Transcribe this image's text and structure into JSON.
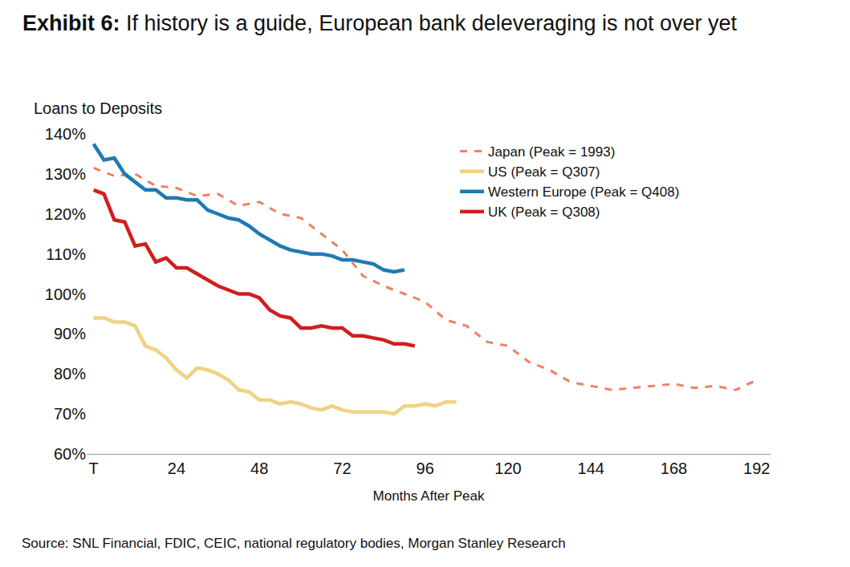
{
  "chart_data": {
    "type": "line",
    "title": "Exhibit 6:  If history is a guide, European bank deleveraging is not over yet",
    "x_label": "Months After Peak",
    "y_label": "Loans to Deposits",
    "source": "Source: SNL Financial, FDIC, CEIC, national regulatory bodies, Morgan Stanley Research",
    "xlim": [
      -2,
      196
    ],
    "xticks": [
      {
        "value": 0,
        "label": "T"
      },
      24,
      48,
      72,
      96,
      120,
      144,
      168,
      192
    ],
    "ylim": [
      60,
      140
    ],
    "yticks": [
      {
        "value": 60,
        "label": "60%"
      },
      {
        "value": 70,
        "label": "70%"
      },
      {
        "value": 80,
        "label": "80%"
      },
      {
        "value": 90,
        "label": "90%"
      },
      {
        "value": 100,
        "label": "100%"
      },
      {
        "value": 110,
        "label": "110%"
      },
      {
        "value": 120,
        "label": "120%"
      },
      {
        "value": 130,
        "label": "130%"
      },
      {
        "value": 140,
        "label": "140%"
      }
    ],
    "grid": false,
    "legend": "top right",
    "series": [
      {
        "name": "Japan (Peak = 1993)",
        "color": "#f08264",
        "line_style": "dashed",
        "x": [
          0,
          6,
          12,
          18,
          24,
          30,
          36,
          42,
          48,
          54,
          60,
          66,
          72,
          78,
          84,
          90,
          96,
          102,
          108,
          114,
          120,
          126,
          132,
          138,
          144,
          150,
          156,
          162,
          168,
          174,
          180,
          186,
          192
        ],
        "values": [
          131.5,
          129.5,
          130,
          127,
          126.5,
          124.5,
          125,
          122,
          123,
          120,
          119,
          115,
          111,
          104.5,
          102,
          100,
          98,
          93.5,
          92,
          88,
          87,
          83,
          81,
          78,
          77,
          76,
          76.5,
          77,
          77.5,
          76.5,
          77,
          76,
          78.5
        ]
      },
      {
        "name": "US (Peak = Q307)",
        "color": "#f0d282",
        "line_style": "solid",
        "x": [
          0,
          3,
          6,
          9,
          12,
          15,
          18,
          21,
          24,
          27,
          30,
          33,
          36,
          39,
          42,
          45,
          48,
          51,
          54,
          57,
          60,
          63,
          66,
          69,
          72,
          75,
          78,
          81,
          84,
          87,
          90,
          93,
          96,
          99,
          102,
          105
        ],
        "values": [
          94,
          94,
          93,
          93,
          92,
          87,
          86,
          84,
          81,
          79,
          81.5,
          81,
          80,
          78.5,
          76,
          75.5,
          73.5,
          73.5,
          72.5,
          73,
          72.5,
          71.5,
          71,
          72,
          71,
          70.5,
          70.5,
          70.5,
          70.5,
          70,
          72,
          72,
          72.5,
          72,
          73,
          73
        ]
      },
      {
        "name": "Western Europe (Peak = Q408)",
        "color": "#1f7ab4",
        "line_style": "solid",
        "x": [
          0,
          3,
          6,
          9,
          12,
          15,
          18,
          21,
          24,
          27,
          30,
          33,
          36,
          39,
          42,
          45,
          48,
          51,
          54,
          57,
          60,
          63,
          66,
          69,
          72,
          75,
          78,
          81,
          84,
          87,
          90
        ],
        "values": [
          137.5,
          133.5,
          134,
          130,
          128,
          126,
          126,
          124,
          124,
          123.5,
          123.5,
          121,
          120,
          119,
          118.5,
          117,
          115,
          113.5,
          112,
          111,
          110.5,
          110,
          110,
          109.5,
          108.5,
          108.5,
          108,
          107.5,
          106,
          105.5,
          106
        ]
      },
      {
        "name": "UK (Peak = Q308)",
        "color": "#d01e1e",
        "line_style": "solid",
        "x": [
          0,
          3,
          6,
          9,
          12,
          15,
          18,
          21,
          24,
          27,
          30,
          33,
          36,
          39,
          42,
          45,
          48,
          51,
          54,
          57,
          60,
          63,
          66,
          69,
          72,
          75,
          78,
          81,
          84,
          87,
          90,
          93
        ],
        "values": [
          126,
          125,
          118.5,
          118,
          112,
          112.5,
          108,
          109,
          106.5,
          106.5,
          105,
          103.5,
          102,
          101,
          100,
          100,
          99,
          96,
          94.5,
          94,
          91.5,
          91.5,
          92,
          91.5,
          91.5,
          89.5,
          89.5,
          89,
          88.5,
          87.5,
          87.5,
          87
        ]
      }
    ]
  }
}
